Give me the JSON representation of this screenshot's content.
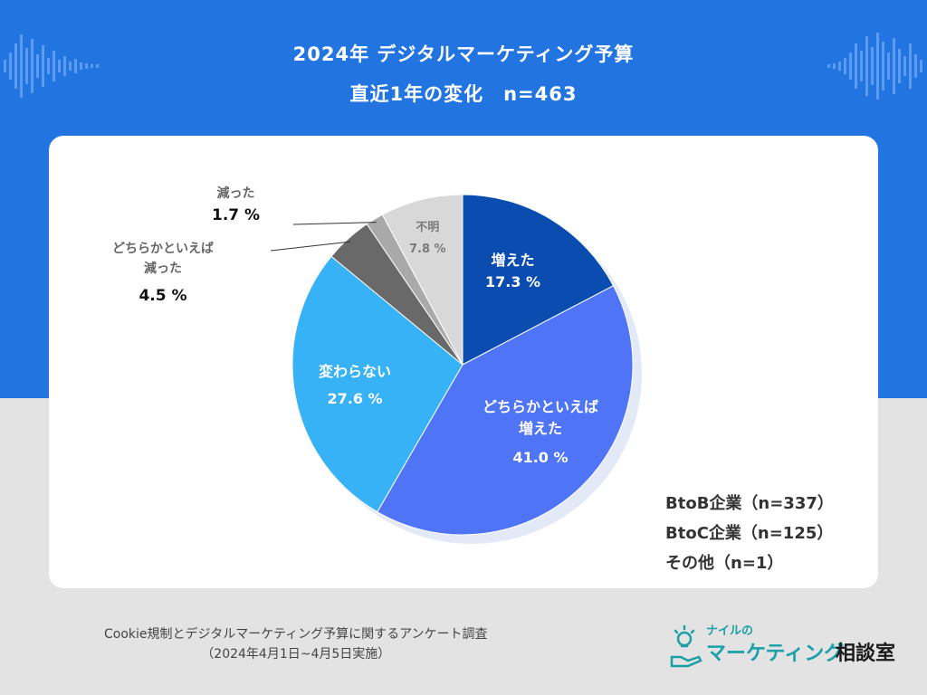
{
  "header": {
    "title_line1": "2024年 デジタルマーケティング予算",
    "title_line2": "直近1年の変化　n=463"
  },
  "chart_data": {
    "type": "pie",
    "title": "2024年 デジタルマーケティング予算 直近1年の変化 n=463",
    "unit": "%",
    "slices": [
      {
        "label": "増えた",
        "value": 17.3,
        "value_label": "17.3 %",
        "color": "#0a4cb0"
      },
      {
        "label": "どちらかといえば増えた",
        "value": 41.0,
        "value_label": "41.0 %",
        "color": "#4f74f5"
      },
      {
        "label": "変わらない",
        "value": 27.6,
        "value_label": "27.6 %",
        "color": "#38b2f6"
      },
      {
        "label": "どちらかといえば減った",
        "value": 4.5,
        "value_label": "4.5 %",
        "color": "#696969"
      },
      {
        "label": "減った",
        "value": 1.7,
        "value_label": "1.7 %",
        "color": "#a9a9a9"
      },
      {
        "label": "不明",
        "value": 7.8,
        "value_label": "7.8 %",
        "color": "#d8d8d8"
      }
    ]
  },
  "labels": {
    "increased": {
      "name": "増えた",
      "value": "17.3 %"
    },
    "somewhat_increased": {
      "name1": "どちらかといえば",
      "name2": "増えた",
      "value": "41.0 %"
    },
    "unchanged": {
      "name": "変わらない",
      "value": "27.6 %"
    },
    "somewhat_decreased": {
      "name1": "どちらかといえば",
      "name2": "減った",
      "value": "4.5 %"
    },
    "decreased": {
      "name": "減った",
      "value": "1.7 %"
    },
    "unknown": {
      "name": "不明",
      "value": "7.8 %"
    }
  },
  "legend": {
    "btob": "BtoB企業（n=337）",
    "btoc": "BtoC企業（n=125）",
    "other": "その他（n=1）"
  },
  "footer": {
    "survey": "Cookie規制とデジタルマーケティング予算に関するアンケート調査",
    "period": "（2024年4月1日~4月5日実施）"
  },
  "logo": {
    "small": "ナイルの",
    "big1": "マーケティング",
    "big2": "相談室"
  }
}
